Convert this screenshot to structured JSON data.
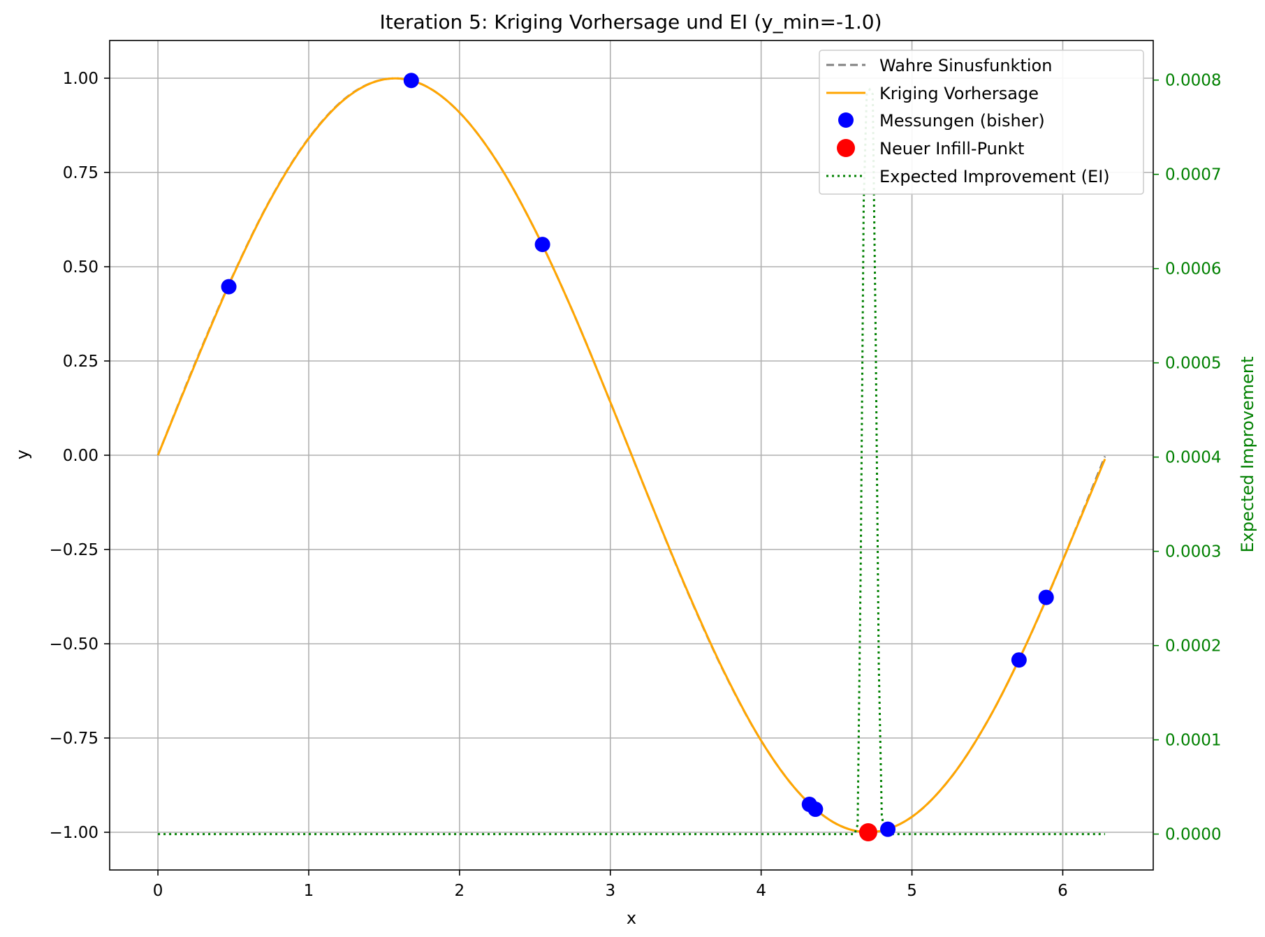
{
  "chart_data": {
    "type": "line",
    "title": "Iteration 5: Kriging Vorhersage und EI (y_min=-1.0)",
    "xlabel": "x",
    "ylabel": "y",
    "y2label": "Expected Improvement",
    "xlim": [
      -0.32,
      6.6
    ],
    "ylim": [
      -1.1,
      1.1
    ],
    "y2lim": [
      -3.81e-05,
      0.000842
    ],
    "xticks": [
      0,
      1,
      2,
      3,
      4,
      5,
      6
    ],
    "xtick_labels": [
      "0",
      "1",
      "2",
      "3",
      "4",
      "5",
      "6"
    ],
    "yticks": [
      1.0,
      0.75,
      0.5,
      0.25,
      0.0,
      -0.25,
      -0.5,
      -0.75,
      -1.0
    ],
    "ytick_labels": [
      "1.00",
      "0.75",
      "0.50",
      "0.25",
      "0.00",
      "−0.25",
      "−0.50",
      "−0.75",
      "−1.00"
    ],
    "y2ticks": [
      0.0,
      0.0001,
      0.0002,
      0.0003,
      0.0004,
      0.0005,
      0.0006,
      0.0007,
      0.0008
    ],
    "y2tick_labels": [
      "0.0000",
      "0.0001",
      "0.0002",
      "0.0003",
      "0.0004",
      "0.0005",
      "0.0006",
      "0.0007",
      "0.0008"
    ],
    "grid": true,
    "legend_position": "top-right",
    "colors": {
      "true_function": "#808080",
      "kriging": "#FFA500",
      "measurements": "#0000FF",
      "infill": "#FF0000",
      "ei": "#008000"
    },
    "series": [
      {
        "name": "Wahre Sinusfunktion",
        "style": "dashed",
        "axis": "left",
        "x": [
          0.0,
          0.25,
          0.5,
          0.75,
          1.0,
          1.25,
          1.5,
          1.75,
          2.0,
          2.25,
          2.5,
          2.75,
          3.0,
          3.25,
          3.5,
          3.75,
          4.0,
          4.25,
          4.5,
          4.75,
          5.0,
          5.25,
          5.5,
          5.75,
          6.0,
          6.28
        ],
        "y": [
          0.0,
          0.247,
          0.479,
          0.682,
          0.841,
          0.949,
          0.997,
          0.984,
          0.909,
          0.778,
          0.598,
          0.382,
          0.141,
          -0.108,
          -0.351,
          -0.572,
          -0.757,
          -0.895,
          -0.978,
          -0.999,
          -0.959,
          -0.859,
          -0.706,
          -0.508,
          -0.279,
          -0.003
        ]
      },
      {
        "name": "Kriging Vorhersage",
        "style": "solid",
        "axis": "left",
        "x": [
          0.0,
          0.25,
          0.5,
          0.75,
          1.0,
          1.25,
          1.5,
          1.75,
          2.0,
          2.25,
          2.5,
          2.75,
          3.0,
          3.25,
          3.5,
          3.75,
          4.0,
          4.25,
          4.5,
          4.75,
          5.0,
          5.25,
          5.5,
          5.75,
          6.0,
          6.28
        ],
        "y": [
          0.0,
          0.245,
          0.478,
          0.681,
          0.84,
          0.948,
          0.997,
          0.984,
          0.909,
          0.778,
          0.598,
          0.382,
          0.141,
          -0.108,
          -0.35,
          -0.571,
          -0.757,
          -0.895,
          -0.978,
          -0.999,
          -0.959,
          -0.859,
          -0.706,
          -0.508,
          -0.279,
          -0.01
        ]
      },
      {
        "name": "Messungen (bisher)",
        "style": "marker",
        "axis": "left",
        "x": [
          0.47,
          1.68,
          2.55,
          4.32,
          4.36,
          4.84,
          5.71,
          5.89
        ],
        "y": [
          0.447,
          0.994,
          0.559,
          -0.926,
          -0.939,
          -0.992,
          -0.543,
          -0.377
        ]
      },
      {
        "name": "Neuer Infill-Punkt",
        "style": "marker",
        "axis": "left",
        "x": [
          4.71
        ],
        "y": [
          -1.0
        ]
      },
      {
        "name": "Expected Improvement (EI)",
        "style": "dotted",
        "axis": "right",
        "x": [
          0.0,
          4.62,
          4.64,
          4.66,
          4.68,
          4.7,
          4.72,
          4.74,
          4.76,
          4.78,
          4.8,
          4.82,
          6.28
        ],
        "y": [
          0.0,
          0.0,
          1e-05,
          0.00028,
          0.00067,
          0.000785,
          0.00079,
          0.000785,
          0.00052,
          0.00018,
          2e-05,
          0.0,
          0.0
        ]
      }
    ]
  }
}
